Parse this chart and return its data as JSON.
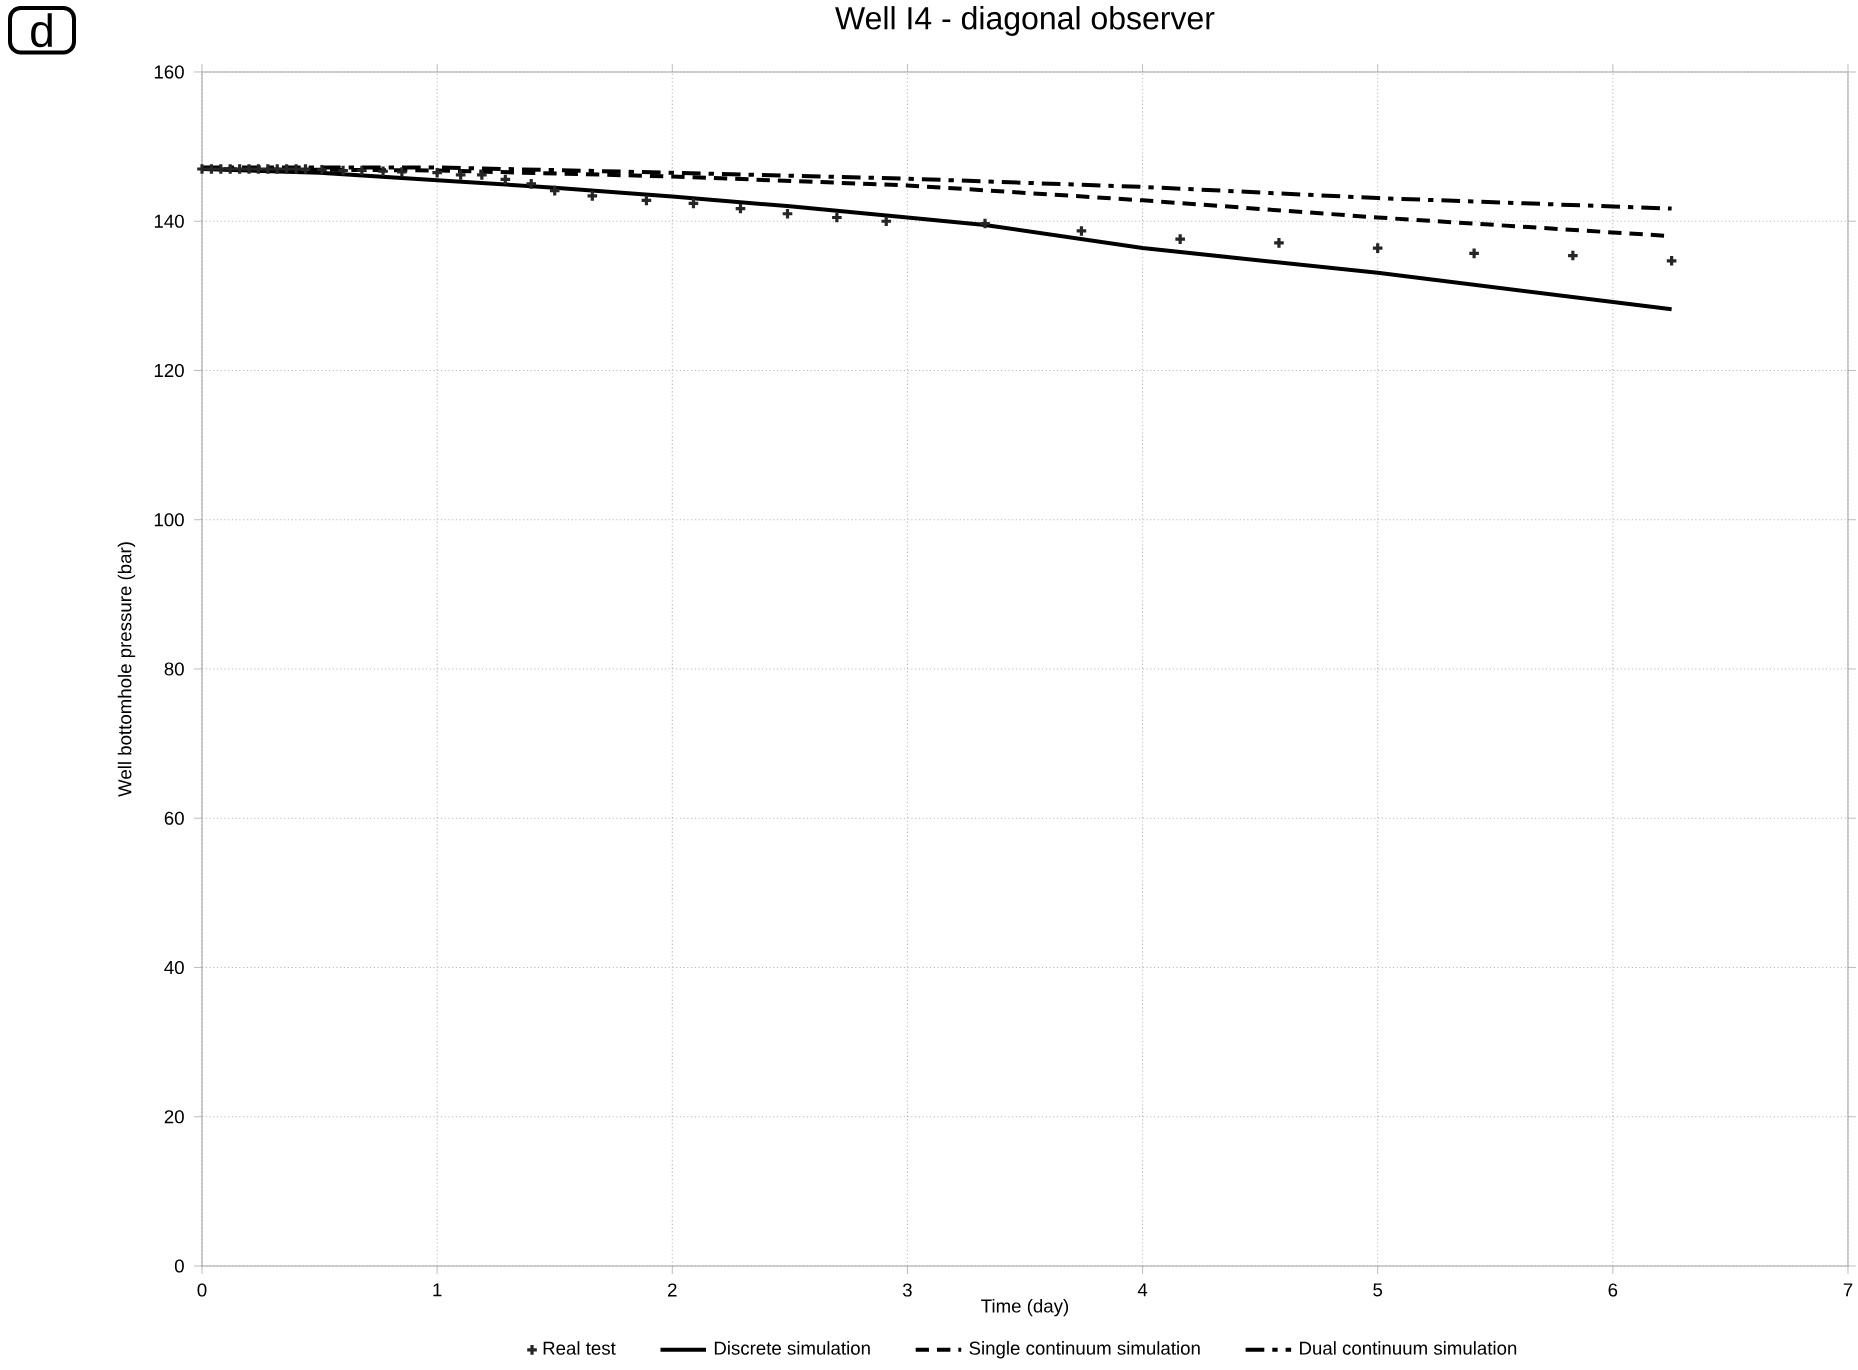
{
  "chart_data": {
    "type": "line",
    "title": "Well I4 - diagonal observer",
    "xlabel": "Time (day)",
    "ylabel": "Well bottomhole pressure (bar)",
    "annotations": [
      "d"
    ],
    "xlim": [
      0,
      7
    ],
    "xticks": [
      0,
      1,
      2,
      3,
      4,
      5,
      6,
      7
    ],
    "ylim": [
      0,
      160
    ],
    "yticks": [
      0,
      20,
      40,
      60,
      80,
      100,
      120,
      140,
      160
    ],
    "grid": true,
    "legend": "bottom",
    "series": [
      {
        "name": "Real test",
        "type": "scatter",
        "marker": "cross",
        "color": "#262626",
        "x": [
          0,
          0.04,
          0.08,
          0.12,
          0.16,
          0.2,
          0.24,
          0.28,
          0.32,
          0.36,
          0.4,
          0.44,
          0.51,
          0.6,
          0.68,
          0.77,
          0.85,
          1.0,
          1.1,
          1.19,
          1.29,
          1.4,
          1.5,
          1.66,
          1.89,
          2.09,
          2.29,
          2.49,
          2.7,
          2.91,
          3.33,
          3.74,
          4.16,
          4.58,
          5.0,
          5.41,
          5.83,
          6.25
        ],
        "values": [
          147,
          147,
          147,
          147,
          147,
          147,
          147,
          147,
          147,
          147,
          147,
          147,
          146.9,
          146.8,
          146.8,
          146.7,
          146.6,
          146.5,
          146.2,
          146.2,
          145.6,
          145,
          144.1,
          143.4,
          142.8,
          142.4,
          141.7,
          141,
          140.5,
          140,
          139.7,
          138.7,
          137.6,
          137.1,
          136.4,
          135.7,
          135.4,
          134.7
        ]
      },
      {
        "name": "Discrete simulation",
        "type": "line",
        "marker": "none",
        "line_style": "solid",
        "color": "#000000",
        "x": [
          0,
          0.5,
          1,
          1.5,
          2,
          2.5,
          3,
          3.33,
          4,
          5,
          6.25
        ],
        "values": [
          147,
          146.5,
          145.5,
          144.5,
          143.3,
          142,
          140.5,
          139.5,
          136.4,
          133.1,
          128.2
        ]
      },
      {
        "name": "Single continuum simulation",
        "type": "line",
        "marker": "none",
        "line_style": "dashed",
        "color": "#000000",
        "x": [
          0,
          1,
          2,
          3,
          4,
          5,
          6.25
        ],
        "values": [
          147,
          146.8,
          146,
          144.8,
          142.8,
          140.5,
          138
        ]
      },
      {
        "name": "Dual continuum simulation",
        "type": "line",
        "marker": "none",
        "line_style": "dashdot",
        "color": "#000000",
        "x": [
          0,
          1,
          2,
          3,
          4,
          5,
          6.25
        ],
        "values": [
          147.2,
          147.2,
          146.5,
          145.7,
          144.6,
          143.1,
          141.7
        ]
      }
    ]
  }
}
